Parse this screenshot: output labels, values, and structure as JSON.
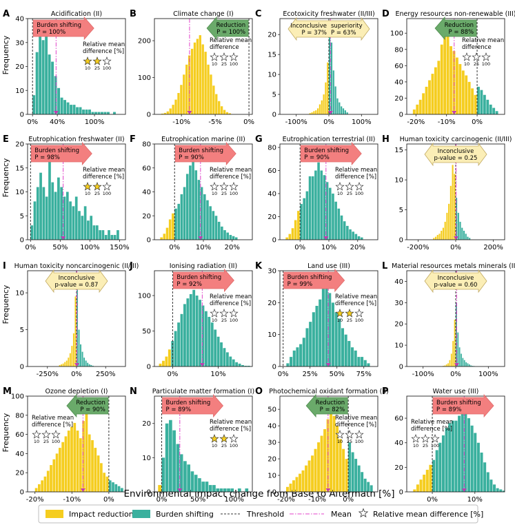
{
  "figure": {
    "xlabel": "Environmental impact change from Base to Aftermath [%]",
    "ylabel": "Frequency",
    "colors": {
      "reduction": "#f5cd1f",
      "burden": "#3ab09e",
      "threshold": "#333333",
      "mean": "#e040c8",
      "red_box": "#f37f7f",
      "red_box_edge": "#e06b6b",
      "green_box": "#6aaa6a",
      "green_box_edge": "#4f8d4f",
      "yellow_box": "#fbeeb6",
      "yellow_box_edge": "#c2aa63",
      "star_fill": "#f5cd1f",
      "mean_marker": "#c23bb1"
    },
    "star_levels": [
      "10",
      "25",
      "100"
    ],
    "legend": {
      "reduction": "Impact reduction",
      "burden": "Burden shifting",
      "threshold": "Threshold",
      "mean": "Mean",
      "star": "Relative mean difference [%]"
    }
  },
  "chart_data": [
    {
      "letter": "A",
      "title": "Acidification (II)",
      "type": "bar",
      "xlim": [
        -8,
        150
      ],
      "ylim": [
        0,
        40
      ],
      "yticks": [
        0,
        10,
        20,
        30,
        40
      ],
      "xticks": [
        0,
        40,
        100
      ],
      "xtick_labels": [
        "0%",
        "40%",
        "100%"
      ],
      "threshold": [
        0
      ],
      "mean": 38,
      "bins_start": 0,
      "bin_width": 5,
      "values": [
        8,
        26,
        34,
        31,
        35,
        25,
        22,
        16,
        11,
        7,
        6,
        5,
        4,
        4,
        3,
        3,
        2,
        2,
        2,
        1,
        1,
        1,
        1,
        1,
        1,
        0,
        1
      ],
      "annotation": {
        "kind": "burden",
        "title": "Burden shifting",
        "line2": "P = 100%"
      },
      "stars": {
        "text": "Relative mean difference [%]",
        "filled": 2
      }
    },
    {
      "letter": "B",
      "title": "Climate change (I)",
      "type": "bar",
      "xlim": [
        -14,
        0.5
      ],
      "ylim": [
        0,
        260
      ],
      "yticks": [
        0,
        100,
        200
      ],
      "xticks": [
        -10,
        -5,
        0
      ],
      "xtick_labels": [
        "-10%",
        "-5%",
        "0%"
      ],
      "threshold": [
        0
      ],
      "mean": -8.8,
      "bins_start": -13,
      "bin_width": 0.4,
      "values": [
        2,
        4,
        8,
        16,
        26,
        40,
        58,
        80,
        108,
        135,
        160,
        178,
        195,
        205,
        215,
        190,
        170,
        135,
        108,
        78,
        55,
        36,
        22,
        12,
        6,
        3
      ],
      "annotation": {
        "kind": "reduction",
        "title": "Reduction",
        "line2": "P = 100%"
      },
      "stars": {
        "text": "Relative mean difference",
        "filled": 0
      }
    },
    {
      "letter": "C",
      "title": "Ecotoxicity freshwater (II/III)",
      "type": "bar",
      "xlim": [
        -150,
        150
      ],
      "ylim": [
        0,
        24
      ],
      "yticks": [
        0,
        5,
        10,
        15,
        20
      ],
      "xticks": [
        -100,
        0,
        100
      ],
      "xtick_labels": [
        "-100%",
        "0%",
        "100%"
      ],
      "threshold": [
        0
      ],
      "mean": 5,
      "bins_start": -60,
      "bin_width": 6,
      "values": [
        0.3,
        0.5,
        0.8,
        1,
        1.5,
        2.5,
        3.5,
        5,
        8,
        13,
        21,
        18,
        11,
        7,
        4,
        3,
        2,
        1.5,
        1,
        0.5
      ],
      "annotation": {
        "kind": "inconclusive",
        "title": "Inconclusive",
        "line2": "P = 37%",
        "title_right": "superiority",
        "line2_right": "P = 63%"
      },
      "stars": null
    },
    {
      "letter": "D",
      "title": "Energy resources non-renewable (III)",
      "type": "bar",
      "xlim": [
        -23,
        9
      ],
      "ylim": [
        0,
        118
      ],
      "yticks": [
        0,
        20,
        40,
        60,
        80,
        100
      ],
      "xticks": [
        -20,
        -10,
        0
      ],
      "xtick_labels": [
        "-20%",
        "-10%",
        "0%"
      ],
      "threshold": [
        0
      ],
      "mean": -7.5,
      "bins_start": -21,
      "bin_width": 1,
      "values": [
        6,
        12,
        18,
        26,
        34,
        42,
        50,
        58,
        66,
        86,
        100,
        96,
        84,
        78,
        70,
        62,
        54,
        48,
        40,
        32,
        24,
        34,
        30,
        24,
        18,
        12,
        8,
        4
      ],
      "annotation": {
        "kind": "reduction",
        "title": "Reduction",
        "line2": "P = 88%"
      },
      "stars": {
        "text": "Relative mean difference",
        "filled": 0
      }
    },
    {
      "letter": "E",
      "title": "Eutrophication freshwater (II)",
      "type": "bar",
      "xlim": [
        -5,
        160
      ],
      "ylim": [
        0,
        20
      ],
      "yticks": [
        0,
        5,
        10,
        15,
        20
      ],
      "xticks": [
        0,
        50,
        100,
        150
      ],
      "xtick_labels": [
        "0%",
        "50%",
        "100%",
        "150%"
      ],
      "threshold": [
        0
      ],
      "mean": 55,
      "bins_start": 0,
      "bin_width": 5,
      "values": [
        3,
        8,
        11,
        14,
        11,
        9,
        17,
        12,
        10,
        13,
        11,
        9,
        10,
        8,
        7,
        9,
        6,
        5,
        7,
        4,
        5,
        3,
        3,
        2,
        2,
        1,
        2,
        1,
        1,
        2
      ],
      "annotation": {
        "kind": "burden",
        "title": "Burden shifting",
        "line2": "P = 98%"
      },
      "stars": {
        "text": "Relative mean difference [%]",
        "filled": 2
      }
    },
    {
      "letter": "F",
      "title": "Eutrophication marine (II)",
      "type": "bar",
      "xlim": [
        -7,
        27
      ],
      "ylim": [
        0,
        80
      ],
      "yticks": [
        0,
        20,
        40,
        60,
        80
      ],
      "xticks": [
        0,
        10,
        20
      ],
      "xtick_labels": [
        "0%",
        "10%",
        "20%"
      ],
      "threshold": [
        0
      ],
      "mean": 9,
      "bins_start": -5,
      "bin_width": 1,
      "values": [
        2,
        5,
        10,
        17,
        22,
        26,
        30,
        38,
        44,
        55,
        62,
        65,
        58,
        50,
        44,
        38,
        33,
        28,
        24,
        20,
        15,
        11,
        8,
        6,
        4,
        3,
        2
      ],
      "annotation": {
        "kind": "burden",
        "title": "Burden shifting",
        "line2": "P = 90%"
      },
      "stars": {
        "text": "Relative mean difference [%]",
        "filled": 0
      }
    },
    {
      "letter": "G",
      "title": "Eutrophication terrestrial (II)",
      "type": "bar",
      "xlim": [
        -7,
        27
      ],
      "ylim": [
        0,
        83
      ],
      "yticks": [
        0,
        20,
        40,
        60,
        80
      ],
      "xticks": [
        0,
        10,
        20
      ],
      "xtick_labels": [
        "0%",
        "10%",
        "20%"
      ],
      "threshold": [
        0
      ],
      "mean": 9,
      "bins_start": -5,
      "bin_width": 1,
      "values": [
        2,
        5,
        10,
        17,
        25,
        31,
        36,
        42,
        55,
        55,
        60,
        67,
        60,
        56,
        50,
        45,
        40,
        33,
        27,
        21,
        16,
        12,
        9,
        7,
        5,
        3,
        2
      ],
      "annotation": {
        "kind": "burden",
        "title": "Burden shifting",
        "line2": "P = 90%"
      },
      "stars": {
        "text": "Relative mean difference [%]",
        "filled": 0
      }
    },
    {
      "letter": "H",
      "title": "Human toxicity carcinogenic (II/III)",
      "type": "bar",
      "xlim": [
        -260,
        260
      ],
      "ylim": [
        0,
        16
      ],
      "yticks": [
        0,
        5,
        10,
        15
      ],
      "xticks": [
        -200,
        0,
        200
      ],
      "xtick_labels": [
        "-200%",
        "0%",
        "200%"
      ],
      "threshold": [
        0
      ],
      "mean": 2,
      "bins_start": -120,
      "bin_width": 10,
      "values": [
        0.3,
        0.5,
        0.8,
        1,
        1.5,
        2,
        3,
        4.5,
        6,
        9,
        12.5,
        11,
        7,
        4.5,
        3,
        2,
        1.5,
        1,
        0.5,
        0.3
      ],
      "annotation": {
        "kind": "inconclusive",
        "title": "Inconclusive",
        "line2": "p-value = 0.25"
      },
      "stars": null
    },
    {
      "letter": "I",
      "title": "Human toxicity noncarcinogenic (II/III)",
      "type": "bar",
      "xlim": [
        -420,
        420
      ],
      "ylim": [
        0,
        13
      ],
      "yticks": [
        0,
        5,
        10
      ],
      "xticks": [
        -250,
        0,
        250
      ],
      "xtick_labels": [
        "-250%",
        "0%",
        "250%"
      ],
      "threshold": [
        0
      ],
      "mean": 3,
      "bins_start": -150,
      "bin_width": 15,
      "values": [
        0.2,
        0.3,
        0.4,
        0.6,
        0.8,
        1.2,
        1.8,
        2.8,
        4.5,
        9.5,
        10.5,
        5,
        3,
        2,
        1.2,
        0.8,
        0.5,
        0.3,
        0.2,
        0.1
      ],
      "annotation": {
        "kind": "inconclusive",
        "title": "Inconclusive",
        "line2": "p-value = 0.87"
      },
      "stars": null
    },
    {
      "letter": "J",
      "title": "Ionising radiation (II)",
      "type": "bar",
      "xlim": [
        -4,
        17.5
      ],
      "ylim": [
        0,
        135
      ],
      "yticks": [
        0,
        50,
        100
      ],
      "xticks": [
        0,
        10
      ],
      "xtick_labels": [
        "0%",
        "10%"
      ],
      "threshold": [
        0
      ],
      "mean": 6.5,
      "bins_start": -3,
      "bin_width": 0.67,
      "values": [
        4,
        8,
        14,
        24,
        36,
        50,
        62,
        74,
        88,
        96,
        102,
        108,
        100,
        94,
        86,
        78,
        70,
        62,
        52,
        42,
        34,
        26,
        20,
        14,
        10,
        6,
        4,
        2,
        1,
        1
      ],
      "annotation": {
        "kind": "burden",
        "title": "Burden shifting",
        "line2": "P = 92%"
      },
      "stars": {
        "text": "Relative mean difference [%]",
        "filled": 0
      }
    },
    {
      "letter": "K",
      "title": "Land use (III)",
      "type": "bar",
      "xlim": [
        -3,
        88
      ],
      "ylim": [
        0,
        30
      ],
      "yticks": [
        0,
        10,
        20,
        30
      ],
      "xticks": [
        0,
        25,
        50,
        75
      ],
      "xtick_labels": [
        "0%",
        "25%",
        "50%",
        "75%"
      ],
      "threshold": [
        0
      ],
      "mean": 42,
      "bins_start": 3,
      "bin_width": 3,
      "values": [
        1,
        3,
        5,
        6,
        7,
        9,
        12,
        14,
        17,
        19,
        21,
        25,
        26,
        23,
        20,
        17,
        15,
        12,
        10,
        8,
        6,
        5,
        3,
        3,
        2,
        1
      ],
      "annotation": {
        "kind": "burden",
        "title": "Burden shifting",
        "line2": "P = 99%"
      },
      "stars": {
        "text": "Relative mean difference [%]",
        "filled": 2
      }
    },
    {
      "letter": "L",
      "title": "Material resources metals minerals (III)",
      "type": "bar",
      "xlim": [
        -150,
        150
      ],
      "ylim": [
        0,
        45
      ],
      "yticks": [
        0,
        10,
        20,
        30,
        40
      ],
      "xticks": [
        -100,
        0,
        100
      ],
      "xtick_labels": [
        "-100%",
        "0%",
        "100%"
      ],
      "threshold": [
        0
      ],
      "mean": 3,
      "bins_start": -40,
      "bin_width": 5,
      "values": [
        0.3,
        0.5,
        1,
        1.5,
        3,
        6,
        12,
        22,
        30,
        16,
        9,
        6,
        4,
        3,
        2,
        1.5,
        1,
        0.5,
        0.3,
        0.2
      ],
      "annotation": {
        "kind": "inconclusive",
        "title": "Inconclusive",
        "line2": "p-value = 0.60"
      },
      "stars": null
    },
    {
      "letter": "M",
      "title": "Ozone depletion (I)",
      "type": "bar",
      "xlim": [
        -22,
        4.5
      ],
      "ylim": [
        0,
        100
      ],
      "yticks": [
        0,
        20,
        40,
        60,
        80,
        100
      ],
      "xticks": [
        -20,
        -10,
        0
      ],
      "xtick_labels": [
        "-20%",
        "-10%",
        "0%"
      ],
      "threshold": [
        0
      ],
      "mean": -7,
      "bins_start": -20,
      "bin_width": 0.8,
      "values": [
        4,
        8,
        12,
        16,
        22,
        28,
        34,
        40,
        46,
        52,
        58,
        64,
        68,
        72,
        64,
        56,
        74,
        82,
        60,
        54,
        46,
        38,
        30,
        20,
        16,
        12,
        10,
        8,
        6,
        4
      ],
      "annotation": {
        "kind": "reduction",
        "title": "Reduction",
        "line2": "P = 90%"
      },
      "stars": {
        "text": "Relative mean difference [%]",
        "filled": 0
      }
    },
    {
      "letter": "N",
      "title": "Particulate matter formation (I)",
      "type": "bar",
      "xlim": [
        -10,
        125
      ],
      "ylim": [
        0,
        28
      ],
      "yticks": [
        0,
        10,
        20
      ],
      "xticks": [
        0,
        50,
        100
      ],
      "xtick_labels": [
        "0%",
        "50%",
        "100%"
      ],
      "threshold": [
        0
      ],
      "mean": 25,
      "bins_start": -5,
      "bin_width": 5,
      "values": [
        2,
        10,
        20,
        21,
        18,
        14,
        11,
        9,
        8,
        6,
        5,
        4,
        3,
        3,
        2,
        2,
        1,
        1,
        1,
        1,
        1,
        0,
        1,
        0,
        1
      ],
      "annotation": {
        "kind": "burden",
        "title": "Burden shifting",
        "line2": "P = 89%"
      },
      "stars": {
        "text": "Relative mean difference [%]",
        "filled": 2
      }
    },
    {
      "letter": "O",
      "title": "Photochemical oxidant formation (II)",
      "type": "bar",
      "xlim": [
        -22,
        9.5
      ],
      "ylim": [
        0,
        58
      ],
      "yticks": [
        0,
        10,
        20,
        30,
        40,
        50
      ],
      "xticks": [
        -20,
        -10,
        0
      ],
      "xtick_labels": [
        "-20%",
        "-10%",
        "0%"
      ],
      "threshold": [
        0
      ],
      "mean": -6.5,
      "bins_start": -20,
      "bin_width": 1,
      "values": [
        3,
        5,
        7,
        9,
        11,
        13,
        16,
        19,
        22,
        26,
        30,
        34,
        38,
        44,
        48,
        46,
        40,
        32,
        26,
        20,
        30,
        24,
        20,
        16,
        12,
        8,
        6,
        4
      ],
      "annotation": {
        "kind": "reduction",
        "title": "Reduction",
        "line2": "P = 82%"
      },
      "stars": {
        "text": "Relative mean difference [%]",
        "filled": 0
      }
    },
    {
      "letter": "P",
      "title": "Water use (III)",
      "type": "bar",
      "xlim": [
        -6,
        17
      ],
      "ylim": [
        0,
        78
      ],
      "yticks": [
        0,
        20,
        40,
        60
      ],
      "xticks": [
        0,
        10
      ],
      "xtick_labels": [
        "0%",
        "10%"
      ],
      "threshold": [
        0
      ],
      "mean": 7.5,
      "bins_start": -4.5,
      "bin_width": 0.75,
      "values": [
        2,
        6,
        10,
        14,
        18,
        22,
        26,
        34,
        40,
        46,
        52,
        56,
        58,
        58,
        62,
        68,
        64,
        60,
        54,
        48,
        40,
        32,
        24,
        16,
        10,
        6,
        3,
        2,
        1
      ],
      "annotation": {
        "kind": "burden",
        "title": "Burden shifting",
        "line2": "P = 89%"
      },
      "stars": {
        "text": "Relative mean difference [%]",
        "filled": 0
      }
    }
  ]
}
